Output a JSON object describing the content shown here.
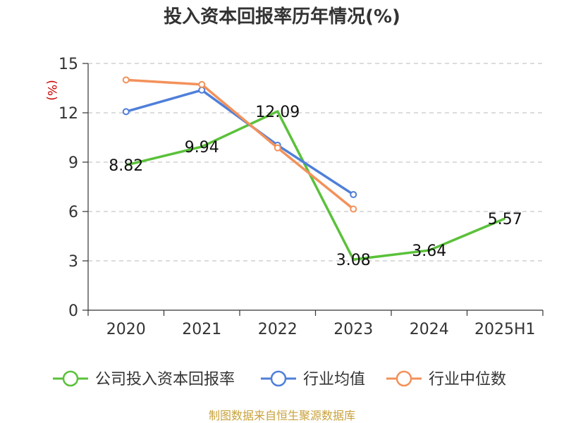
{
  "chart_data": {
    "type": "line",
    "title": "投入资本回报率历年情况(%)",
    "y_unit": "(%)",
    "categories": [
      "2020",
      "2021",
      "2022",
      "2023",
      "2024",
      "2025H1"
    ],
    "ylim": [
      0,
      15
    ],
    "yticks": [
      0,
      3,
      6,
      9,
      12,
      15
    ],
    "grid": true,
    "legend_position": "bottom",
    "series": [
      {
        "name": "公司投入资本回报率",
        "color": "#5ac13a",
        "values": [
          8.82,
          9.94,
          12.09,
          3.08,
          3.64,
          5.57
        ],
        "show_labels": true
      },
      {
        "name": "行业均值",
        "color": "#4f7fd9",
        "values": [
          12.07,
          13.38,
          10.03,
          7.03,
          null,
          null
        ],
        "show_labels": false
      },
      {
        "name": "行业中位数",
        "color": "#f3915a",
        "values": [
          14.0,
          13.72,
          9.87,
          6.15,
          null,
          null
        ],
        "show_labels": false
      }
    ],
    "data_labels": [
      "8.82",
      "9.94",
      "12.09",
      "3.08",
      "3.64",
      "5.57"
    ],
    "source": "制图数据来自恒生聚源数据库"
  }
}
